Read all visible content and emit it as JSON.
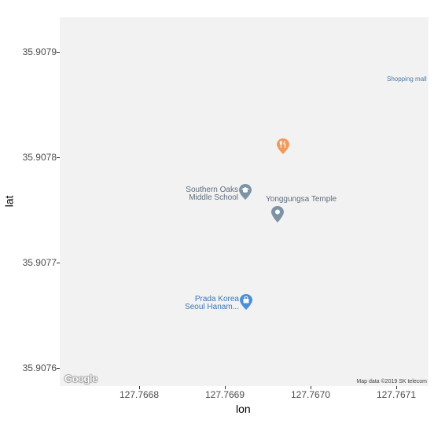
{
  "map": {
    "x_axis_title": "lon",
    "y_axis_title": "lat",
    "x_ticks": [
      "127.7668",
      "127.7669",
      "127.7670",
      "127.7671"
    ],
    "y_ticks": [
      "35.9079",
      "35.9078",
      "35.9077",
      "35.9076"
    ],
    "logo_text": "Google",
    "attribution": "Map data ©2019 SK telecom",
    "background_color": "#f2f2f2"
  },
  "pois": {
    "shopping_mall": {
      "label": "Shopping mall",
      "color": "#4a7aa8"
    },
    "restaurant": {
      "label": "",
      "icon": "fork-knife-icon",
      "color": "#f19a5e"
    },
    "school": {
      "line1": "Southern Oaks",
      "line2": "Middle School",
      "icon": "graduation-cap-icon",
      "color": "#7d93a6"
    },
    "temple": {
      "label": "Yonggungsa Temple",
      "icon": "place-marker-icon",
      "color": "#7d93a6"
    },
    "store": {
      "line1": "Prada Korea",
      "line2": "Seoul Hanam...",
      "icon": "shopping-bag-icon",
      "color": "#4a90d9"
    }
  }
}
